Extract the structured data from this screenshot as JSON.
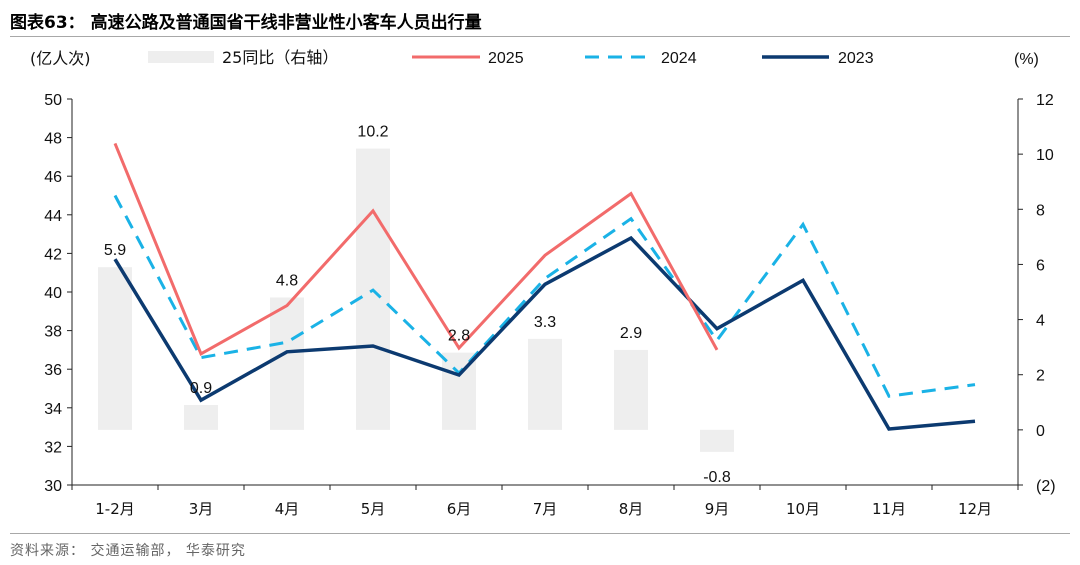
{
  "figure_title": "图表63： 高速公路及普通国省干线非营业性小客车人员出行量",
  "source": "资料来源： 交通运输部， 华泰研究",
  "colors": {
    "bar": "#eeeeee",
    "series_2025": "#f26b6b",
    "series_2024": "#1ab2e6",
    "series_2023": "#0c3a70",
    "axis": "#222222"
  },
  "chart_data": {
    "type": "bar+line",
    "categories": [
      "1-2月",
      "3月",
      "4月",
      "5月",
      "6月",
      "7月",
      "8月",
      "9月",
      "10月",
      "11月",
      "12月"
    ],
    "left_axis": {
      "label": "(亿人次)",
      "min": 30,
      "max": 50,
      "ticks": [
        "30",
        "32",
        "34",
        "36",
        "38",
        "40",
        "42",
        "44",
        "46",
        "48",
        "50"
      ]
    },
    "right_axis": {
      "label": "(%)",
      "min": -2,
      "max": 12,
      "ticks": [
        "(2)",
        "0",
        "2",
        "4",
        "6",
        "8",
        "10",
        "12"
      ]
    },
    "bar_series": {
      "name": "25同比（右轴）",
      "values": [
        5.9,
        0.9,
        4.8,
        10.2,
        2.8,
        3.3,
        2.9,
        -0.8,
        null,
        null,
        null
      ],
      "labels": [
        "5.9",
        "0.9",
        "4.8",
        "10.2",
        "2.8",
        "3.3",
        "2.9",
        "-0.8",
        "",
        "",
        ""
      ]
    },
    "series": [
      {
        "name": "2025",
        "style": "solid",
        "values": [
          47.7,
          36.8,
          39.3,
          44.2,
          37.1,
          41.9,
          45.1,
          37.0,
          null,
          null,
          null
        ]
      },
      {
        "name": "2024",
        "style": "dashed",
        "values": [
          45.0,
          36.6,
          37.4,
          40.1,
          35.8,
          40.7,
          43.8,
          37.5,
          43.5,
          34.6,
          35.2
        ]
      },
      {
        "name": "2023",
        "style": "solid",
        "values": [
          41.7,
          34.4,
          36.9,
          37.2,
          35.7,
          40.4,
          42.8,
          38.1,
          40.6,
          32.9,
          33.3
        ]
      }
    ]
  }
}
